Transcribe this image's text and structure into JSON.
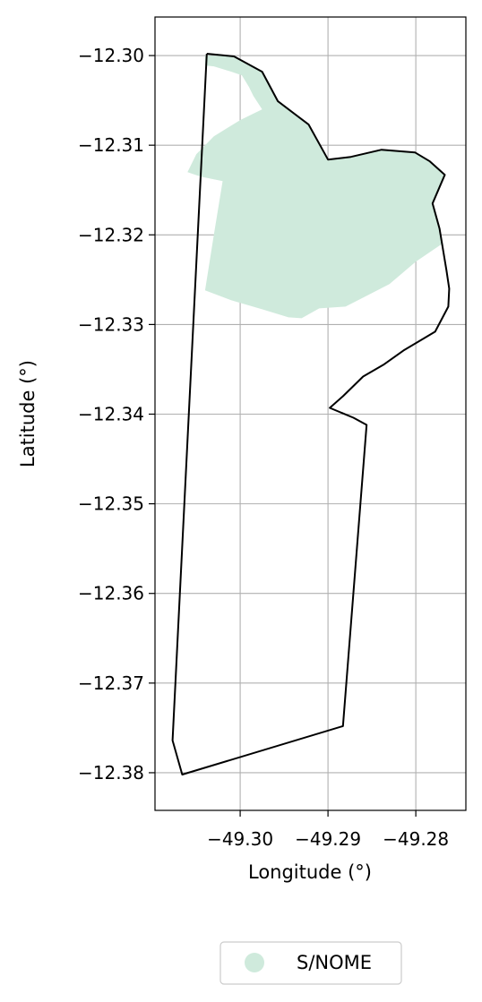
{
  "chart_data": {
    "type": "map",
    "xlabel": "Longitude (°)",
    "ylabel": "Latitude (°)",
    "xlim": [
      -49.3097,
      -49.2743
    ],
    "ylim": [
      -12.3842,
      -12.2957
    ],
    "xticks": [
      -49.3,
      -49.29,
      -49.28
    ],
    "xtick_labels": [
      "−49.30",
      "−49.29",
      "−49.28"
    ],
    "yticks": [
      -12.3,
      -12.31,
      -12.32,
      -12.33,
      -12.34,
      -12.35,
      -12.36,
      -12.37,
      -12.38
    ],
    "ytick_labels": [
      "−12.30",
      "−12.31",
      "−12.32",
      "−12.33",
      "−12.34",
      "−12.35",
      "−12.36",
      "−12.37",
      "−12.38"
    ],
    "grid": true,
    "legend": {
      "placement": "below",
      "entries": [
        {
          "label": "S/NOME",
          "color": "#cfeadc"
        }
      ]
    },
    "boundary": {
      "stroke": "#000000",
      "points": [
        [
          -49.3038,
          -12.2998
        ],
        [
          -49.3007,
          -12.3001
        ],
        [
          -49.2975,
          -12.3018
        ],
        [
          -49.2957,
          -12.3051
        ],
        [
          -49.2922,
          -12.3077
        ],
        [
          -49.29,
          -12.3116
        ],
        [
          -49.2874,
          -12.3113
        ],
        [
          -49.2839,
          -12.3105
        ],
        [
          -49.2801,
          -12.3108
        ],
        [
          -49.2784,
          -12.3118
        ],
        [
          -49.2767,
          -12.3133
        ],
        [
          -49.2781,
          -12.3165
        ],
        [
          -49.2773,
          -12.3193
        ],
        [
          -49.2765,
          -12.324
        ],
        [
          -49.2762,
          -12.326
        ],
        [
          -49.2763,
          -12.328
        ],
        [
          -49.2778,
          -12.3308
        ],
        [
          -49.2814,
          -12.3329
        ],
        [
          -49.2837,
          -12.3345
        ],
        [
          -49.286,
          -12.3358
        ],
        [
          -49.2883,
          -12.338
        ],
        [
          -49.2898,
          -12.3393
        ],
        [
          -49.2871,
          -12.3404
        ],
        [
          -49.2856,
          -12.3412
        ],
        [
          -49.2883,
          -12.3748
        ],
        [
          -49.3066,
          -12.3802
        ],
        [
          -49.3077,
          -12.3764
        ],
        [
          -49.3038,
          -12.2998
        ]
      ]
    },
    "regions": [
      {
        "name": "S/NOME",
        "color": "#cfeadc",
        "points": [
          [
            -49.304,
            -12.3
          ],
          [
            -49.3005,
            -12.3001
          ],
          [
            -49.2975,
            -12.3018
          ],
          [
            -49.2957,
            -12.3051
          ],
          [
            -49.2922,
            -12.3077
          ],
          [
            -49.29,
            -12.3116
          ],
          [
            -49.2874,
            -12.3113
          ],
          [
            -49.2839,
            -12.3105
          ],
          [
            -49.2801,
            -12.3108
          ],
          [
            -49.2784,
            -12.3118
          ],
          [
            -49.2767,
            -12.3133
          ],
          [
            -49.2781,
            -12.3165
          ],
          [
            -49.2773,
            -12.3193
          ],
          [
            -49.277,
            -12.321
          ],
          [
            -49.28,
            -12.323
          ],
          [
            -49.283,
            -12.3255
          ],
          [
            -49.286,
            -12.327
          ],
          [
            -49.288,
            -12.328
          ],
          [
            -49.291,
            -12.3282
          ],
          [
            -49.293,
            -12.3293
          ],
          [
            -49.2945,
            -12.3292
          ],
          [
            -49.2975,
            -12.3283
          ],
          [
            -49.301,
            -12.3273
          ],
          [
            -49.304,
            -12.3262
          ],
          [
            -49.303,
            -12.32
          ],
          [
            -49.302,
            -12.314
          ],
          [
            -49.3045,
            -12.3135
          ],
          [
            -49.306,
            -12.313
          ],
          [
            -49.305,
            -12.311
          ],
          [
            -49.303,
            -12.309
          ],
          [
            -49.3,
            -12.3072
          ],
          [
            -49.2975,
            -12.306
          ],
          [
            -49.2985,
            -12.3045
          ],
          [
            -49.299,
            -12.3035
          ],
          [
            -49.2998,
            -12.3022
          ],
          [
            -49.301,
            -12.3018
          ],
          [
            -49.302,
            -12.3015
          ],
          [
            -49.303,
            -12.3012
          ],
          [
            -49.304,
            -12.3011
          ]
        ]
      }
    ]
  }
}
